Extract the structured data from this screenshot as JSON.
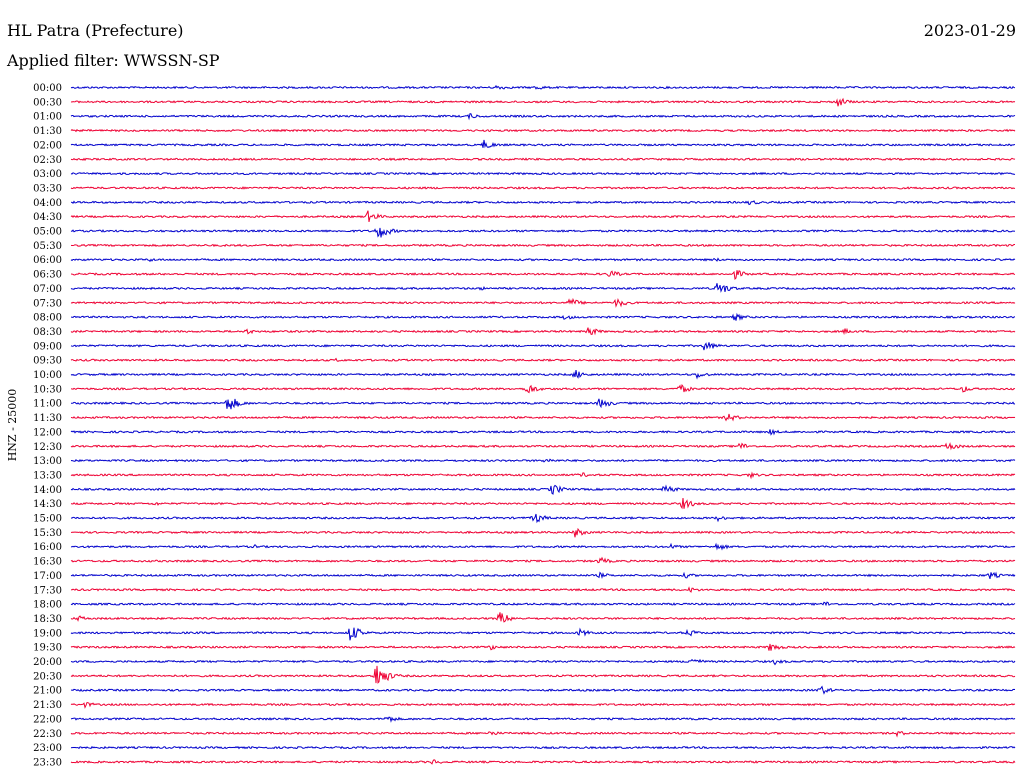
{
  "header": {
    "station": "HL Patra (Prefecture)",
    "date": "2023-01-29",
    "filter": "Applied filter: WWSSN-SP"
  },
  "chart_data": {
    "type": "line",
    "title": "HL Patra (Prefecture)",
    "ylabel": "HNZ - 25000",
    "xlabel": "",
    "row_labels": [
      "00:00",
      "00:30",
      "01:00",
      "01:30",
      "02:00",
      "02:30",
      "03:00",
      "03:30",
      "04:00",
      "04:30",
      "05:00",
      "05:30",
      "06:00",
      "06:30",
      "07:00",
      "07:30",
      "08:00",
      "08:30",
      "09:00",
      "09:30",
      "10:00",
      "10:30",
      "11:00",
      "11:30",
      "12:00",
      "12:30",
      "13:00",
      "13:30",
      "14:00",
      "14:30",
      "15:00",
      "15:30",
      "16:00",
      "16:30",
      "17:00",
      "17:30",
      "18:00",
      "18:30",
      "19:00",
      "19:30",
      "20:00",
      "20:30",
      "21:00",
      "21:30",
      "22:00",
      "22:30",
      "23:00",
      "23:30"
    ],
    "colors": [
      "#0000cc",
      "#ee0033"
    ],
    "grid": false
  }
}
